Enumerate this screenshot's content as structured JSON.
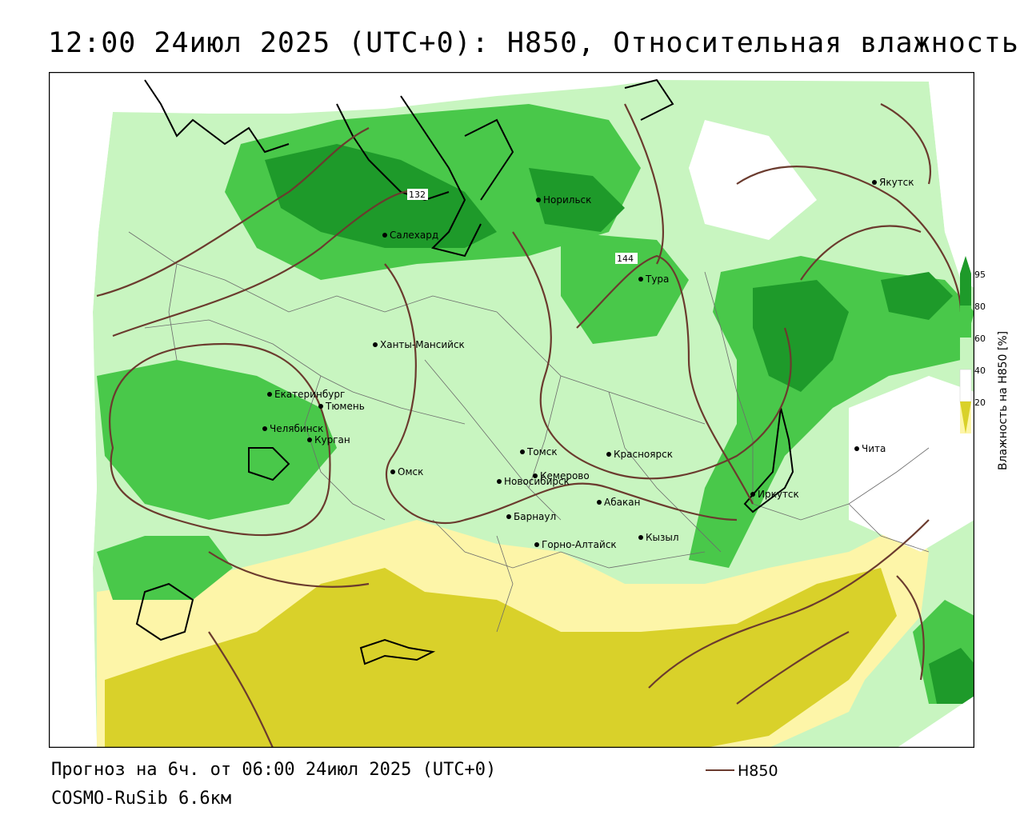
{
  "title": "12:00 24июл 2025 (UTC+0): H850, Относительная влажность",
  "footer": {
    "forecast": "Прогноз на 6ч. от 06:00 24июл 2025 (UTC+0)",
    "model": "COSMO-RuSib 6.6км"
  },
  "legend": {
    "line_label": "H850",
    "line_color": "#6b3b2e"
  },
  "colorbar": {
    "label": "Влажность на H850 [%]",
    "ticks": [
      "95",
      "80",
      "60",
      "40",
      "20"
    ],
    "colors": {
      "very_dry": "#d9d12a",
      "dry": "#fdf5a8",
      "neutral": "#ffffff",
      "moist": "#c8f5c0",
      "wet": "#49c84a",
      "very_wet": "#1e9a2a"
    }
  },
  "contour_labels": [
    "132",
    "144"
  ],
  "cities": [
    "Якутск",
    "Норильск",
    "Салехард",
    "Тура",
    "Ханты-Мансийск",
    "Екатеринбург",
    "Тюмень",
    "Челябинск",
    "Курган",
    "Омск",
    "Новосибирск",
    "Томск",
    "Красноярск",
    "Кемерово",
    "Абакан",
    "Барнаул",
    "Горно-Алтайск",
    "Кызыл",
    "Иркутск",
    "Чита"
  ]
}
